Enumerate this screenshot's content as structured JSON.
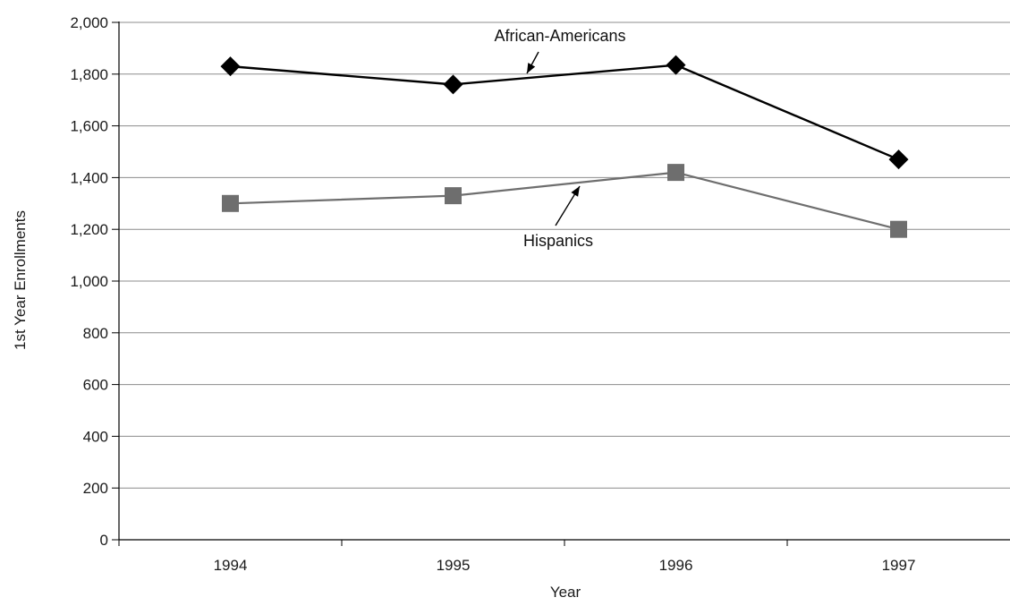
{
  "chart_data": {
    "type": "line",
    "categories": [
      "1994",
      "1995",
      "1996",
      "1997"
    ],
    "series": [
      {
        "name": "African-Americans",
        "values": [
          1830,
          1760,
          1835,
          1470
        ],
        "color": "#000000",
        "marker": "diamond"
      },
      {
        "name": "Hispanics",
        "values": [
          1300,
          1330,
          1420,
          1200
        ],
        "color": "#6e6e6e",
        "marker": "square"
      }
    ],
    "xlabel": "Year",
    "ylabel": "1st Year Enrollments",
    "ylim": [
      0,
      2000
    ],
    "yticks": [
      0,
      200,
      400,
      600,
      800,
      1000,
      1200,
      1400,
      1600,
      1800,
      2000
    ],
    "ytick_labels": [
      "0",
      "200",
      "400",
      "600",
      "800",
      "1,000",
      "1,200",
      "1,400",
      "1,600",
      "1,800",
      "2,000"
    ],
    "grid": true,
    "legend": "none",
    "annotations": [
      {
        "text": "African-Americans",
        "series": 0
      },
      {
        "text": "Hispanics",
        "series": 1
      }
    ]
  }
}
